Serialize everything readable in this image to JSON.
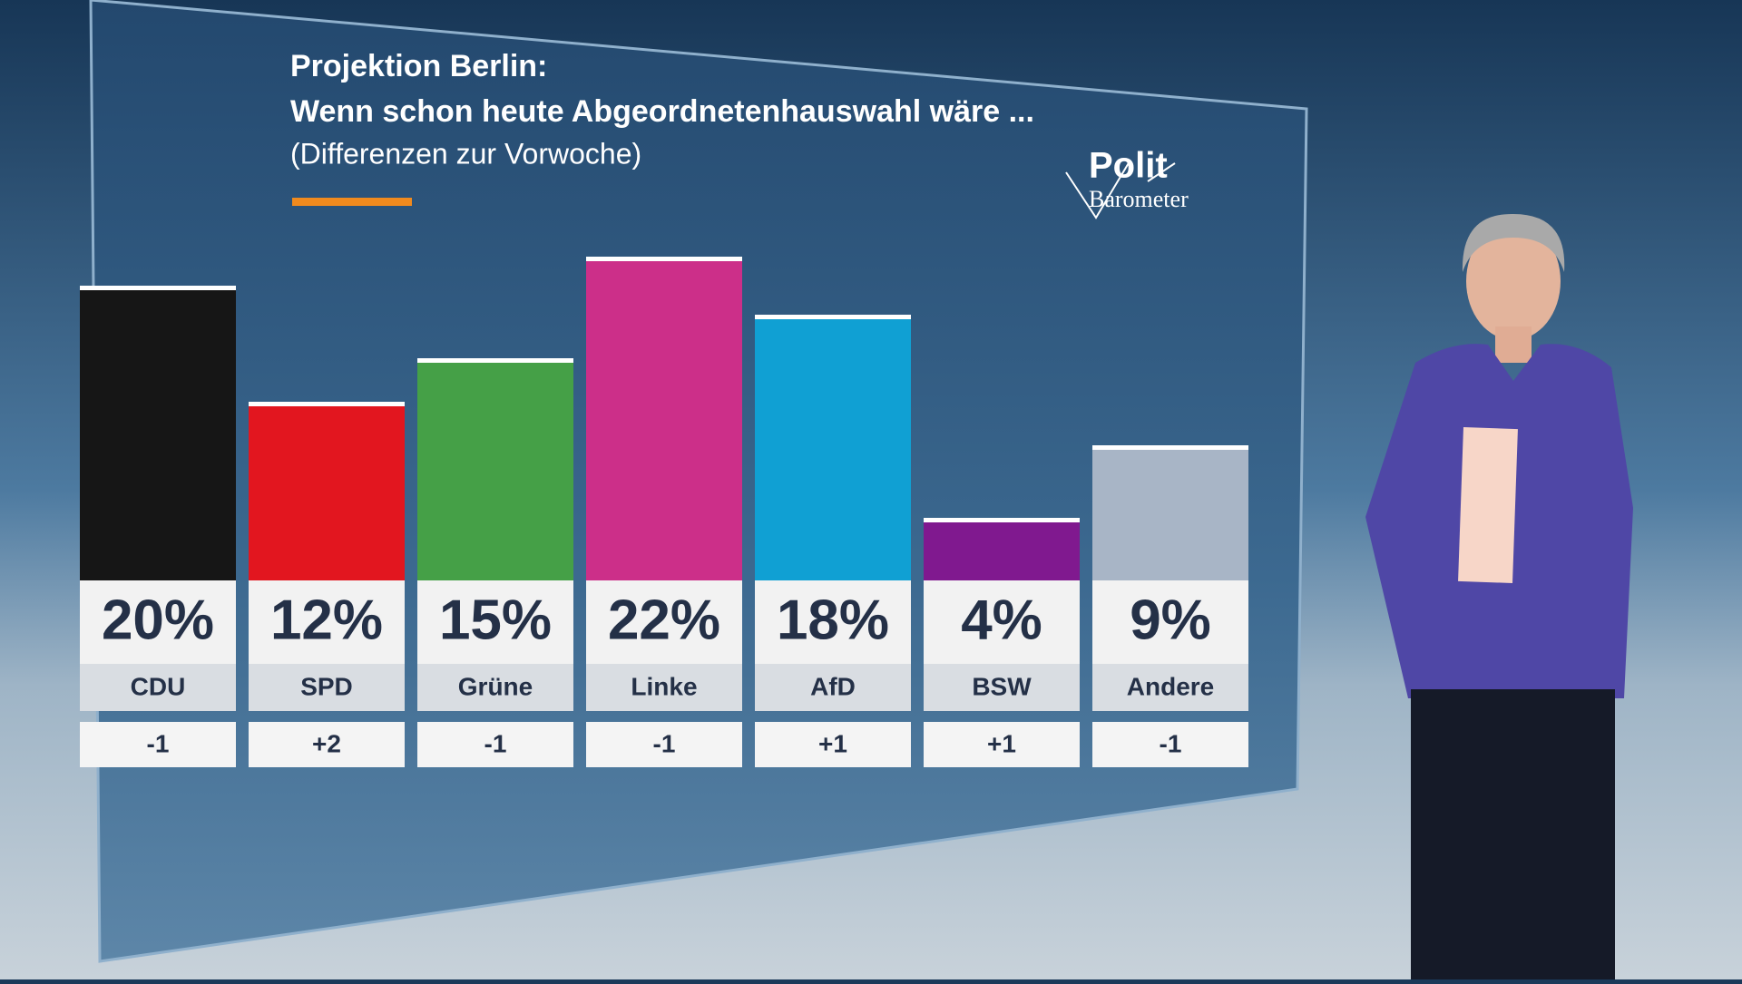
{
  "chart_data": {
    "type": "bar",
    "title": "Projektion Berlin:",
    "subtitle": "Wenn schon heute Abgeordnetenhauswahl wäre ...",
    "note": "(Differenzen zur Vorwoche)",
    "logo": [
      "Polit",
      "Barometer"
    ],
    "categories": [
      "CDU",
      "SPD",
      "Grüne",
      "Linke",
      "AfD",
      "BSW",
      "Andere"
    ],
    "values": [
      20,
      12,
      15,
      22,
      18,
      4,
      9
    ],
    "value_labels": [
      "20%",
      "12%",
      "15%",
      "22%",
      "18%",
      "4%",
      "9%"
    ],
    "colors": [
      "#161616",
      "#e2161f",
      "#45a047",
      "#cc2f89",
      "#10a0d3",
      "#80198f",
      "#a8b5c6"
    ],
    "changes": [
      "-1",
      "+2",
      "-1",
      "-1",
      "+1",
      "+1",
      "-1"
    ]
  }
}
